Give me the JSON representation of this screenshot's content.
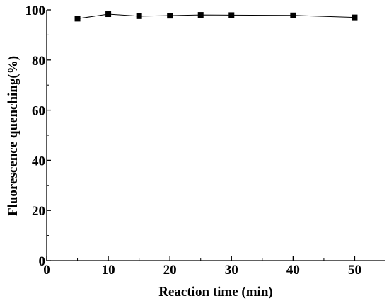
{
  "chart_data": {
    "type": "line",
    "title": "",
    "xlabel": "Reaction time (min)",
    "ylabel": "Fluorescence quenching(%)",
    "xlim": [
      0,
      55
    ],
    "ylim": [
      0,
      100
    ],
    "xticks": [
      0,
      10,
      20,
      30,
      40,
      50
    ],
    "yticks": [
      0,
      20,
      40,
      60,
      80,
      100
    ],
    "grid": false,
    "legend": "none",
    "marker": "square",
    "line_color": "#000000",
    "series": [
      {
        "x": [
          5,
          10,
          15,
          20,
          25,
          30,
          40,
          50
        ],
        "values": [
          96.5,
          98.3,
          97.5,
          97.7,
          98.0,
          97.9,
          97.8,
          97.0
        ]
      }
    ]
  }
}
